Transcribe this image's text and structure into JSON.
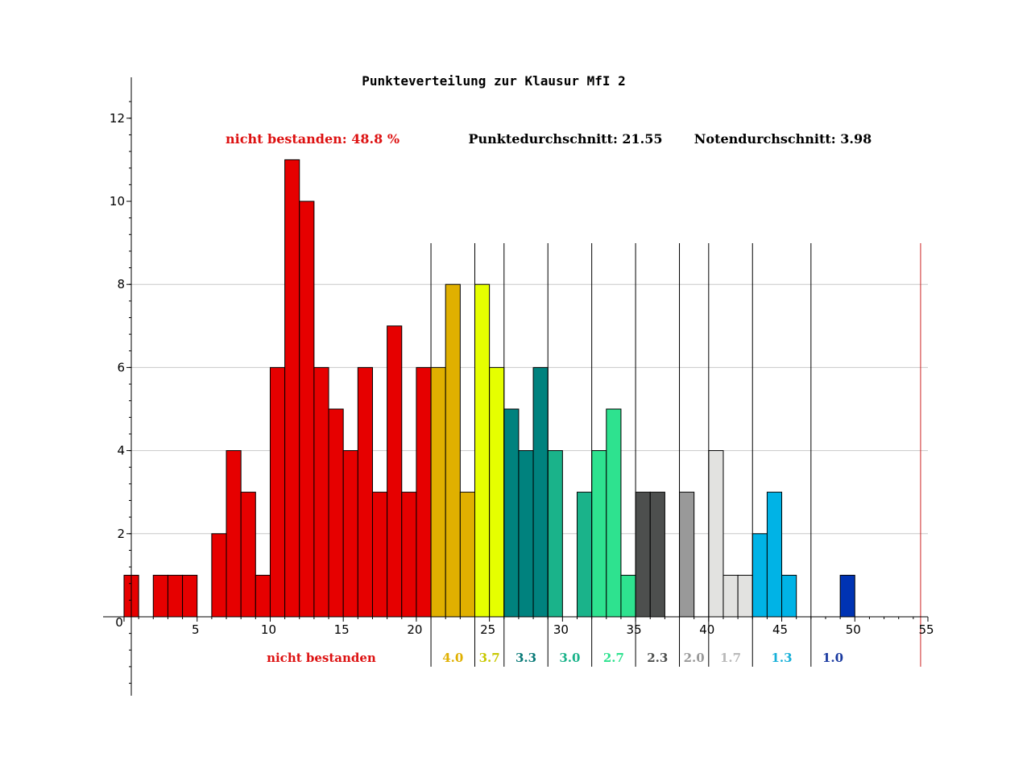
{
  "chart_data": {
    "type": "bar",
    "title": "Punkteverteilung zur Klausur MfI 2",
    "stats": {
      "failed": "nicht bestanden: 48.8 %",
      "avg_points": "Punktedurchschnitt: 21.55",
      "avg_grade": "Notendurchschnitt: 3.98"
    },
    "xlabel": "",
    "ylabel": "",
    "xlim": [
      0,
      55
    ],
    "ylim": [
      -2,
      13
    ],
    "x_ticks": [
      "0",
      "5",
      "10",
      "15",
      "20",
      "25",
      "30",
      "35",
      "40",
      "45",
      "50",
      "55"
    ],
    "y_ticks": [
      "2",
      "4",
      "6",
      "8",
      "10",
      "12"
    ],
    "grid": true,
    "bars": [
      {
        "x": 0,
        "value": 1,
        "grade": "nb"
      },
      {
        "x": 2,
        "value": 1,
        "grade": "nb"
      },
      {
        "x": 3,
        "value": 1,
        "grade": "nb"
      },
      {
        "x": 4,
        "value": 1,
        "grade": "nb"
      },
      {
        "x": 6,
        "value": 2,
        "grade": "nb"
      },
      {
        "x": 7,
        "value": 4,
        "grade": "nb"
      },
      {
        "x": 8,
        "value": 3,
        "grade": "nb"
      },
      {
        "x": 9,
        "value": 1,
        "grade": "nb"
      },
      {
        "x": 10,
        "value": 6,
        "grade": "nb"
      },
      {
        "x": 11,
        "value": 11,
        "grade": "nb"
      },
      {
        "x": 12,
        "value": 10,
        "grade": "nb"
      },
      {
        "x": 13,
        "value": 6,
        "grade": "nb"
      },
      {
        "x": 14,
        "value": 5,
        "grade": "nb"
      },
      {
        "x": 15,
        "value": 4,
        "grade": "nb"
      },
      {
        "x": 16,
        "value": 6,
        "grade": "nb"
      },
      {
        "x": 17,
        "value": 3,
        "grade": "nb"
      },
      {
        "x": 18,
        "value": 7,
        "grade": "nb"
      },
      {
        "x": 19,
        "value": 3,
        "grade": "nb"
      },
      {
        "x": 20,
        "value": 6,
        "grade": "nb"
      },
      {
        "x": 21,
        "value": 6,
        "grade": "4.0"
      },
      {
        "x": 22,
        "value": 8,
        "grade": "4.0"
      },
      {
        "x": 23,
        "value": 3,
        "grade": "4.0"
      },
      {
        "x": 24,
        "value": 8,
        "grade": "3.7"
      },
      {
        "x": 25,
        "value": 6,
        "grade": "3.7"
      },
      {
        "x": 26,
        "value": 5,
        "grade": "3.3"
      },
      {
        "x": 27,
        "value": 4,
        "grade": "3.3"
      },
      {
        "x": 28,
        "value": 6,
        "grade": "3.3"
      },
      {
        "x": 29,
        "value": 4,
        "grade": "3.0"
      },
      {
        "x": 31,
        "value": 3,
        "grade": "3.0"
      },
      {
        "x": 32,
        "value": 4,
        "grade": "2.7"
      },
      {
        "x": 33,
        "value": 5,
        "grade": "2.7"
      },
      {
        "x": 34,
        "value": 1,
        "grade": "2.7"
      },
      {
        "x": 35,
        "value": 3,
        "grade": "2.3"
      },
      {
        "x": 36,
        "value": 3,
        "grade": "2.3"
      },
      {
        "x": 38,
        "value": 3,
        "grade": "2.0"
      },
      {
        "x": 40,
        "value": 4,
        "grade": "1.7"
      },
      {
        "x": 41,
        "value": 1,
        "grade": "1.7"
      },
      {
        "x": 42,
        "value": 1,
        "grade": "1.7"
      },
      {
        "x": 43,
        "value": 2,
        "grade": "1.3"
      },
      {
        "x": 44,
        "value": 3,
        "grade": "1.3"
      },
      {
        "x": 45,
        "value": 1,
        "grade": "1.3"
      },
      {
        "x": 49,
        "value": 1,
        "grade": "1.0"
      }
    ],
    "grade_boundaries": [
      21,
      24,
      26,
      29,
      32,
      35,
      38,
      40,
      43,
      47
    ],
    "max_points_line": 54.5,
    "grades": [
      {
        "key": "nb",
        "label": "nicht bestanden",
        "label_x": 13.5,
        "color": "#e60000",
        "label_color": "#dd1111"
      },
      {
        "key": "4.0",
        "label": "4.0",
        "label_x": 22.5,
        "color": "#e0b000",
        "label_color": "#e0b000"
      },
      {
        "key": "3.7",
        "label": "3.7",
        "label_x": 25.0,
        "color": "#e6ff00",
        "label_color": "#c8c800"
      },
      {
        "key": "3.3",
        "label": "3.3",
        "label_x": 27.5,
        "color": "#00827e",
        "label_color": "#0a7a78"
      },
      {
        "key": "3.0",
        "label": "3.0",
        "label_x": 30.5,
        "color": "#1ab38a",
        "label_color": "#1ab38a"
      },
      {
        "key": "2.7",
        "label": "2.7",
        "label_x": 33.5,
        "color": "#2ee28f",
        "label_color": "#2ee28f"
      },
      {
        "key": "2.3",
        "label": "2.3",
        "label_x": 36.5,
        "color": "#4d4f4e",
        "label_color": "#4d4f4e"
      },
      {
        "key": "2.0",
        "label": "2.0",
        "label_x": 39.0,
        "color": "#999999",
        "label_color": "#999999"
      },
      {
        "key": "1.7",
        "label": "1.7",
        "label_x": 41.5,
        "color": "#e2e2e0",
        "label_color": "#b8b8b8"
      },
      {
        "key": "1.3",
        "label": "1.3",
        "label_x": 45.0,
        "color": "#00b3e6",
        "label_color": "#16b0d8"
      },
      {
        "key": "1.0",
        "label": "1.0",
        "label_x": 48.5,
        "color": "#0033b3",
        "label_color": "#1a3aa0"
      }
    ]
  }
}
